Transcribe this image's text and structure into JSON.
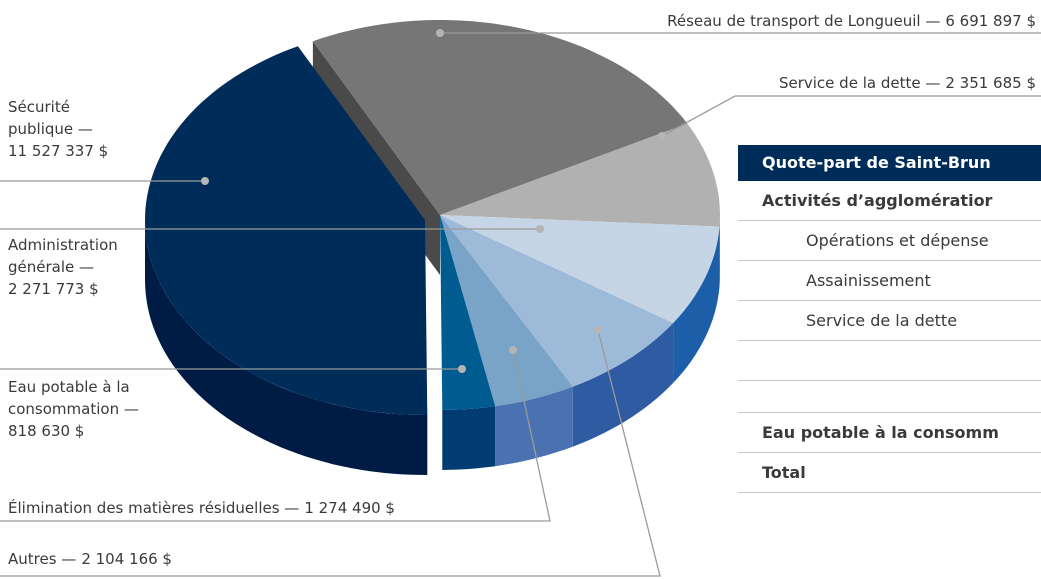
{
  "chart_data": {
    "type": "pie",
    "categories": [
      "Réseau de transport de Longueuil —",
      "Service de la dette —",
      "Administration générale —",
      "Autres —",
      "Élimination des matières résiduelles —",
      "Eau potable à la consommation —",
      "Sécurité publique —"
    ],
    "values": [
      6691897,
      2351685,
      2271773,
      2104166,
      1274490,
      818630,
      11527337
    ],
    "value_labels": [
      "6 691 897 $",
      "2 351 685 $",
      "2 271 773 $",
      "2 104 166 $",
      "1 274 490 $",
      "818 630 $",
      "11 527 337 $"
    ],
    "colors": [
      "#767676",
      "#b1b1b1",
      "#c6d5e6",
      "#9dbad8",
      "#7aa3c8",
      "#005b91",
      "#002c5a"
    ],
    "side_colors": [
      "#4a4a4a",
      "#8a8a8a",
      "#1c5fa8",
      "#2e5ba2",
      "#4a72b0",
      "#003b72",
      "#001c44"
    ],
    "exploded": [
      6
    ]
  },
  "table": {
    "header": "Quote-part de Saint-Brun",
    "rows": [
      "Activités d’agglomératior",
      "Opérations et dépense",
      "Assainissement",
      "Service de la dette",
      "Eau potable à la consomm",
      "Total"
    ]
  }
}
